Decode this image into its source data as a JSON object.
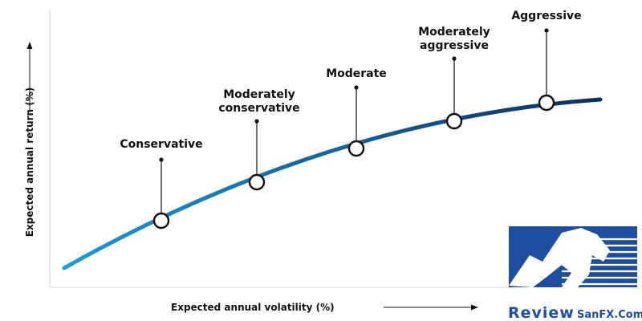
{
  "chart_data": {
    "type": "line",
    "title": "",
    "xlabel": "Expected annual volatility (%)",
    "ylabel": "Expected annual return (%)",
    "grid": false,
    "curve_color_start": "#1e9ad6",
    "curve_color_end": "#0d2d5e",
    "portfolios": [
      {
        "label": "Conservative"
      },
      {
        "label": "Moderately\nconservative"
      },
      {
        "label": "Moderate"
      },
      {
        "label": "Moderately\naggressive"
      },
      {
        "label": "Aggressive"
      }
    ]
  },
  "watermark": {
    "text_main": "Review",
    "text_brand": "SanFX.Com",
    "color": "#1f4ea0"
  }
}
